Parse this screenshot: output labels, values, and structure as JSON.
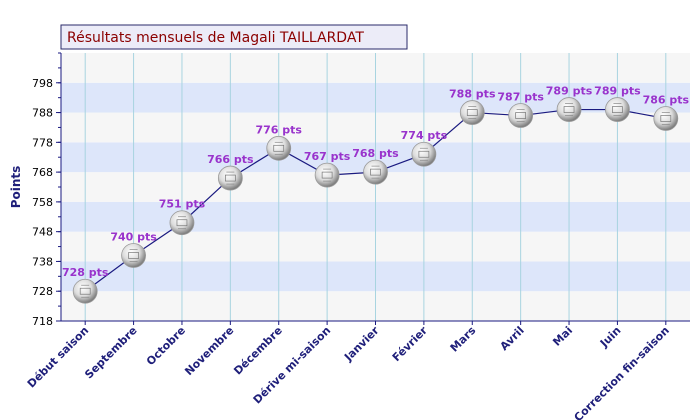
{
  "chart_data": {
    "type": "line",
    "title": "Résultats mensuels de Magali TAILLARDAT",
    "xlabel": "",
    "ylabel": "Points",
    "categories": [
      "Début saison",
      "Septembre",
      "Octobre",
      "Novembre",
      "Décembre",
      "Dérive mi-saison",
      "Janvier",
      "Février",
      "Mars",
      "Avril",
      "Mai",
      "Juin",
      "Correction fin-saison"
    ],
    "values": [
      728,
      740,
      751,
      766,
      776,
      767,
      768,
      774,
      788,
      787,
      789,
      789,
      786
    ],
    "data_labels": [
      "728 pts",
      "740 pts",
      "751 pts",
      "766 pts",
      "776 pts",
      "767 pts",
      "768 pts",
      "774 pts",
      "788 pts",
      "787 pts",
      "789 pts",
      "789 pts",
      "786 pts"
    ],
    "yticks": [
      718,
      728,
      738,
      748,
      758,
      768,
      778,
      788,
      798
    ],
    "ylim": [
      718,
      808
    ],
    "grid": true,
    "legend": "none",
    "colors": {
      "line": "#1a1a80",
      "band_blue": "#dde6fa",
      "band_white": "#f6f6f6",
      "vgrid": "#a8d4e0",
      "axis": "#1a1a80",
      "data_label": "#9933cc",
      "title": "#8b0000",
      "title_bg": "#ececf8",
      "category_label": "#1f1f7a"
    },
    "marker_icon": "ball-icon"
  }
}
